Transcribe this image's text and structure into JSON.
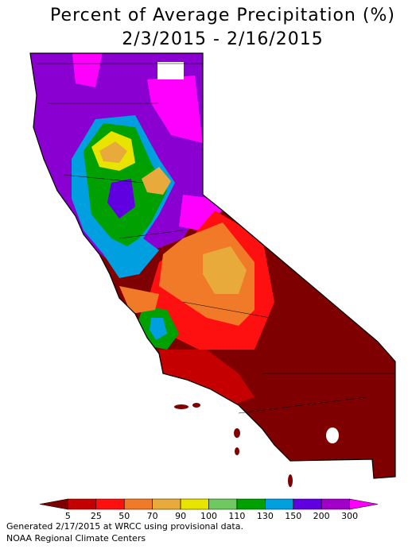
{
  "title": "Percent of Average Precipitation (%)",
  "subtitle": "2/3/2015 - 2/16/2015",
  "legend": {
    "ticks": [
      5,
      25,
      50,
      70,
      90,
      100,
      110,
      130,
      150,
      200,
      300
    ],
    "colors": [
      "#7f0000",
      "#c40000",
      "#ff1010",
      "#f07a28",
      "#e8aa3a",
      "#e8e400",
      "#70c860",
      "#00a000",
      "#00a0e0",
      "#6000e0",
      "#a000c8",
      "#ff00ff"
    ]
  },
  "footer": [
    "Generated 2/17/2015 at WRCC using provisional data.",
    "NOAA Regional Climate Centers"
  ]
}
